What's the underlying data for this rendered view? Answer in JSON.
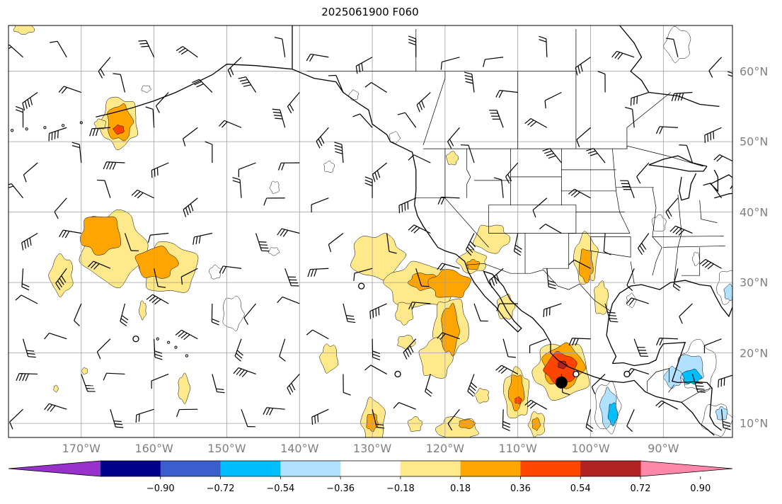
{
  "title": "2025061900 F060",
  "map": {
    "projection": "PlateCarree",
    "extent": {
      "lon_min": -180,
      "lon_max": -80.5,
      "lat_min": 8,
      "lat_max": 66.5
    },
    "lon_labels": [
      "170°W",
      "160°W",
      "150°W",
      "140°W",
      "130°W",
      "120°W",
      "110°W",
      "100°W",
      "90°W"
    ],
    "lon_values": [
      -170,
      -160,
      -150,
      -140,
      -130,
      -120,
      -110,
      -100,
      -90
    ],
    "lat_labels": [
      "60°N",
      "50°N",
      "40°N",
      "30°N",
      "20°N",
      "10°N"
    ],
    "lat_values": [
      60,
      50,
      40,
      30,
      20,
      10
    ],
    "gridlines": true,
    "gridline_color": "#a0a0a0",
    "label_color": "#808080",
    "features": [
      "coastlines",
      "country borders",
      "US state borders",
      "wind barbs",
      "filled contours"
    ]
  },
  "colorbar": {
    "orientation": "horizontal",
    "extend": "both",
    "tick_labels": [
      "−0.90",
      "−0.72",
      "−0.54",
      "−0.36",
      "−0.18",
      "0.18",
      "0.36",
      "0.54",
      "0.72",
      "0.90"
    ],
    "levels": [
      -0.9,
      -0.72,
      -0.54,
      -0.36,
      -0.18,
      0.18,
      0.36,
      0.54,
      0.72,
      0.9
    ],
    "colors": [
      "#9932cc",
      "#00008b",
      "#3a5fcd",
      "#00bfff",
      "#b0e2ff",
      "#ffffff",
      "#ffe98a",
      "#ffa500",
      "#ff4500",
      "#b22222",
      "#ff88aa"
    ]
  },
  "contour_regions": [
    {
      "name": "hawaii-north-positive",
      "level": 0.36,
      "lon": -164.5,
      "lat": 52.5
    },
    {
      "name": "central-pacific-positive",
      "level": 0.36,
      "lon": -163,
      "lat": 33
    },
    {
      "name": "baja-plume-positive",
      "level": 0.36,
      "lon": -121,
      "lat": 27
    },
    {
      "name": "mexico-west-positive",
      "level": 0.72,
      "lon": -104.5,
      "lat": 17
    },
    {
      "name": "texas-positive",
      "level": 0.36,
      "lon": -100.5,
      "lat": 32
    },
    {
      "name": "gulf-tehuantepec-negative",
      "level": -0.54,
      "lon": -97.5,
      "lat": 13
    },
    {
      "name": "central-america-negative",
      "level": -0.36,
      "lon": -87,
      "lat": 18
    },
    {
      "name": "hudson-negative",
      "level": -0.18,
      "lon": -87,
      "lat": 63.5
    },
    {
      "name": "east-pacific-negative",
      "level": -0.18,
      "lon": -149,
      "lat": 25
    }
  ]
}
